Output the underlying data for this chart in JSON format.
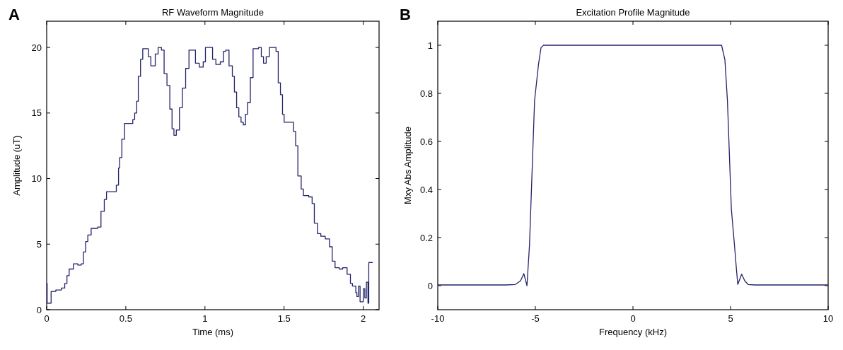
{
  "chart_data": [
    {
      "type": "step",
      "title": "RF Waveform Magnitude",
      "xlabel": "Time (ms)",
      "ylabel": "Amplitude (uT)",
      "annotations": [
        "A"
      ],
      "color": "#23236b",
      "xlim": [
        0,
        2.1
      ],
      "ylim": [
        0,
        22
      ],
      "xticks": [
        0,
        0.5,
        1,
        1.5,
        2
      ],
      "yticks": [
        0,
        5,
        10,
        15,
        20
      ],
      "x": [
        0,
        0.003,
        0.028,
        0.058,
        0.093,
        0.114,
        0.128,
        0.142,
        0.169,
        0.197,
        0.218,
        0.232,
        0.246,
        0.26,
        0.281,
        0.322,
        0.343,
        0.364,
        0.378,
        0.419,
        0.44,
        0.454,
        0.461,
        0.475,
        0.492,
        0.524,
        0.544,
        0.556,
        0.569,
        0.579,
        0.593,
        0.607,
        0.621,
        0.642,
        0.658,
        0.674,
        0.686,
        0.704,
        0.725,
        0.742,
        0.76,
        0.778,
        0.792,
        0.804,
        0.819,
        0.839,
        0.857,
        0.878,
        0.899,
        0.919,
        0.94,
        0.964,
        0.989,
        1.003,
        1.028,
        1.048,
        1.069,
        1.097,
        1.117,
        1.131,
        1.152,
        1.173,
        1.186,
        1.2,
        1.214,
        1.228,
        1.242,
        1.256,
        1.269,
        1.287,
        1.304,
        1.338,
        1.356,
        1.37,
        1.387,
        1.407,
        1.428,
        1.449,
        1.463,
        1.477,
        1.49,
        1.5,
        1.539,
        1.559,
        1.573,
        1.587,
        1.608,
        1.622,
        1.656,
        1.677,
        1.691,
        1.711,
        1.732,
        1.76,
        1.787,
        1.804,
        1.822,
        1.849,
        1.87,
        1.898,
        1.919,
        1.932,
        1.953,
        1.96,
        1.97,
        1.98,
        2.0,
        2.01,
        2.02,
        2.03,
        2.035,
        2.06
      ],
      "values": [
        2,
        0.5,
        1.4,
        1.5,
        1.65,
        2,
        2.6,
        3.1,
        3.5,
        3.4,
        3.5,
        4.4,
        5.2,
        5.7,
        6.2,
        6.3,
        7.5,
        8.4,
        9,
        9,
        9.5,
        10.8,
        11.6,
        13,
        14.2,
        14.2,
        14.5,
        15,
        15.9,
        17.8,
        19.1,
        19.9,
        19.9,
        19.3,
        18.6,
        18.6,
        19.5,
        20,
        19.8,
        18,
        17.1,
        15.3,
        13.8,
        13.3,
        13.7,
        15.4,
        16.9,
        18.4,
        19.8,
        19.8,
        18.8,
        18.5,
        18.9,
        20,
        20,
        19.1,
        18.7,
        18.9,
        19.7,
        19.8,
        18.6,
        17.8,
        16.6,
        15.4,
        14.7,
        14.3,
        14.1,
        14.9,
        15.8,
        17.7,
        19.9,
        20,
        19.3,
        18.8,
        19.3,
        20,
        20,
        19.7,
        17.3,
        16.4,
        14.9,
        14.3,
        14.3,
        13.6,
        12.5,
        10.2,
        9.2,
        8.7,
        8.6,
        8.1,
        6.6,
        5.8,
        5.6,
        5.4,
        4.8,
        3.7,
        3.2,
        3.1,
        3.2,
        2.7,
        2,
        1.8,
        1.3,
        1,
        1.8,
        0.6,
        1.6,
        0.9,
        2.1,
        0.5,
        3.6,
        3.6
      ]
    },
    {
      "type": "line",
      "title": "Excitation Profile Magnitude",
      "xlabel": "Frequency (kHz)",
      "ylabel": "Mxy Abs Amplitude",
      "annotations": [
        "B"
      ],
      "color": "#23236b",
      "xlim": [
        -10,
        10
      ],
      "ylim": [
        -0.1,
        1.1
      ],
      "xticks": [
        -10,
        -5,
        0,
        5,
        10
      ],
      "yticks": [
        0,
        0.2,
        0.4,
        0.6,
        0.8,
        1
      ],
      "x": [
        -10,
        -8,
        -6.5,
        -6.03,
        -5.76,
        -5.59,
        -5.43,
        -5.3,
        -5.17,
        -5.04,
        -4.84,
        -4.71,
        -4.58,
        4.54,
        4.71,
        4.84,
        4.93,
        5.04,
        5.2,
        5.3,
        5.37,
        5.57,
        5.73,
        5.9,
        6.23,
        8,
        10
      ],
      "values": [
        0.003,
        0.003,
        0.003,
        0.005,
        0.02,
        0.05,
        0,
        0.17,
        0.47,
        0.77,
        0.92,
        0.99,
        1,
        1,
        0.94,
        0.77,
        0.57,
        0.32,
        0.17,
        0.07,
        0.005,
        0.048,
        0.02,
        0.005,
        0.003,
        0.003,
        0.003
      ]
    }
  ]
}
